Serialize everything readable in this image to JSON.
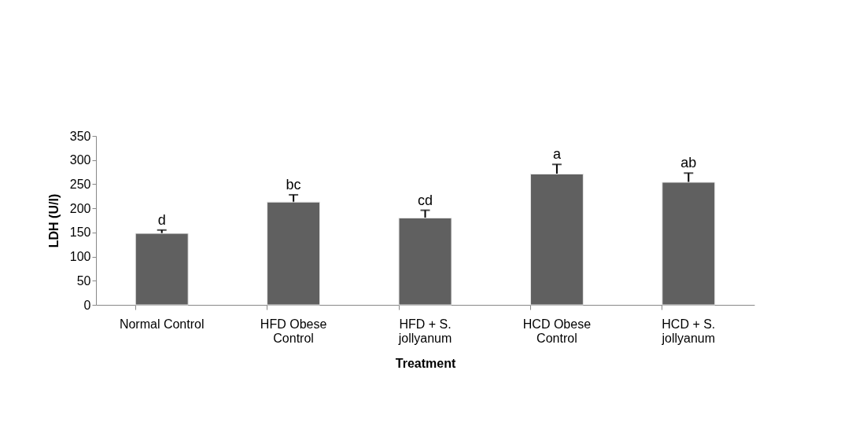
{
  "chart_data": {
    "type": "bar",
    "xlabel": "Treatment",
    "ylabel": "LDH (U/l)",
    "categories": [
      "Normal Control",
      "HFD Obese Control",
      "HFD + S. jollyanum",
      "HCD  Obese Control",
      "HCD + S. jollyanum"
    ],
    "values": [
      148,
      213,
      180,
      271,
      254
    ],
    "errors": [
      7,
      15,
      16,
      20,
      19
    ],
    "color": "#606060",
    "ylim": [
      0,
      350
    ],
    "yticks": [
      0,
      50,
      100,
      150,
      200,
      250,
      300,
      350
    ],
    "grid": false,
    "annotations": [
      {
        "text": "d",
        "x": "Normal Control",
        "y": 155
      },
      {
        "text": "bc",
        "x": "HFD Obese Control",
        "y": 228
      },
      {
        "text": "cd",
        "x": "HFD + S. jollyanum",
        "y": 196
      },
      {
        "text": "a",
        "x": "HCD  Obese Control",
        "y": 291
      },
      {
        "text": "ab",
        "x": "HCD + S. jollyanum",
        "y": 273
      }
    ]
  }
}
